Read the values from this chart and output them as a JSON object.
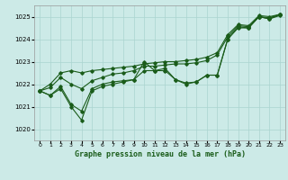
{
  "title": "Graphe pression niveau de la mer (hPa)",
  "background_color": "#cceae7",
  "grid_color": "#aad4d0",
  "line_color": "#1a5c1a",
  "xlim": [
    -0.5,
    23.5
  ],
  "ylim": [
    1019.5,
    1025.5
  ],
  "yticks": [
    1020,
    1021,
    1022,
    1023,
    1024,
    1025
  ],
  "xticks": [
    0,
    1,
    2,
    3,
    4,
    5,
    6,
    7,
    8,
    9,
    10,
    11,
    12,
    13,
    14,
    15,
    16,
    17,
    18,
    19,
    20,
    21,
    22,
    23
  ],
  "series": [
    [
      1021.7,
      1021.5,
      1021.8,
      1021.0,
      1020.4,
      1021.7,
      1021.9,
      1022.0,
      1022.1,
      1022.2,
      1023.0,
      1022.6,
      1022.6,
      1022.2,
      1022.0,
      1022.1,
      1022.4,
      1022.4,
      1024.0,
      1024.5,
      1024.5,
      1025.0,
      1024.9,
      1025.1
    ],
    [
      1021.7,
      1021.5,
      1021.9,
      1021.1,
      1020.8,
      1021.8,
      1022.0,
      1022.1,
      1022.15,
      1022.2,
      1022.6,
      1022.6,
      1022.7,
      1022.2,
      1022.05,
      1022.1,
      1022.4,
      1022.4,
      1024.0,
      1024.55,
      1024.5,
      1025.0,
      1024.9,
      1025.05
    ],
    [
      1021.7,
      1021.85,
      1022.3,
      1022.0,
      1021.8,
      1022.15,
      1022.3,
      1022.45,
      1022.5,
      1022.6,
      1022.8,
      1022.8,
      1022.85,
      1022.9,
      1022.9,
      1022.95,
      1023.05,
      1023.3,
      1024.1,
      1024.6,
      1024.55,
      1025.0,
      1024.95,
      1025.1
    ],
    [
      1021.7,
      1022.0,
      1022.5,
      1022.6,
      1022.5,
      1022.6,
      1022.65,
      1022.7,
      1022.75,
      1022.8,
      1022.9,
      1022.95,
      1023.0,
      1023.0,
      1023.05,
      1023.1,
      1023.2,
      1023.4,
      1024.2,
      1024.65,
      1024.6,
      1025.05,
      1025.0,
      1025.1
    ]
  ]
}
